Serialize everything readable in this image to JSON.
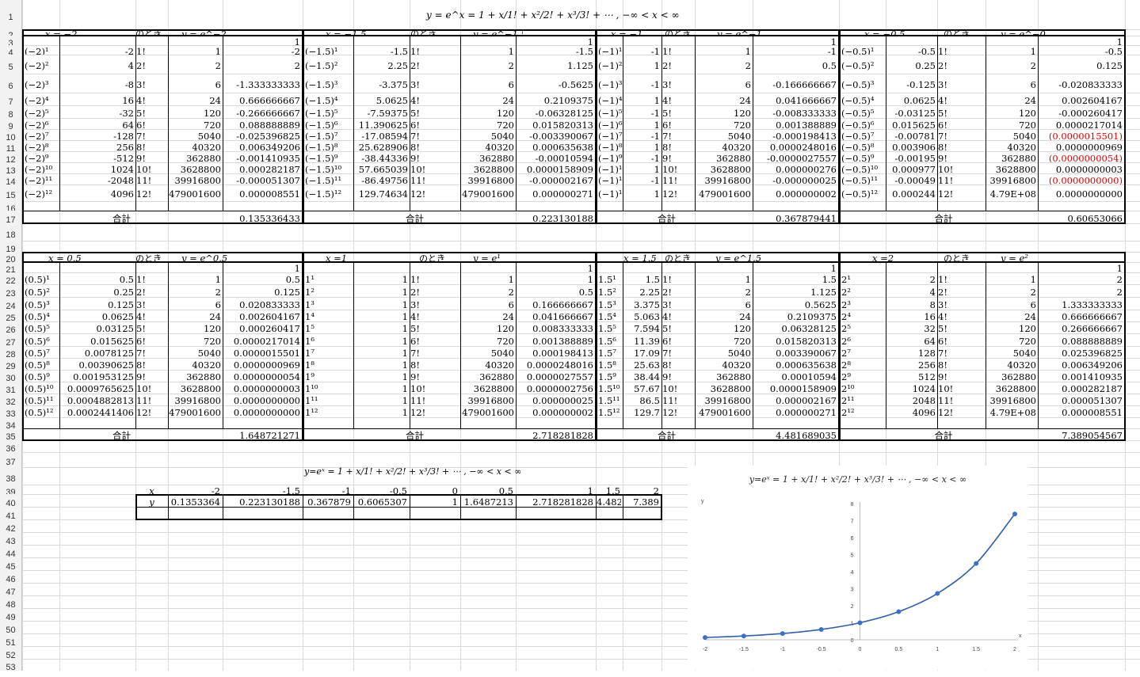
{
  "main_formula": "y = e^x = 1 + x/1! + x²/2! + x³/3! + ⋯ ,      −∞ < x < ∞",
  "small_formula": "y=eˣ = 1 + x/1! + x²/2! + x³/3! + ⋯ , −∞ < x < ∞",
  "noto_ki": "のとき",
  "total_label": "合計",
  "row_numbers": [
    "1",
    "2",
    "3",
    "4",
    "5",
    "6",
    "7",
    "8",
    "9",
    "10",
    "11",
    "12",
    "13",
    "14",
    "15",
    "16",
    "17",
    "18",
    "19",
    "20",
    "21",
    "22",
    "23",
    "24",
    "25",
    "26",
    "27",
    "28",
    "29",
    "30",
    "31",
    "32",
    "33",
    "34",
    "35",
    "36",
    "37",
    "38",
    "39",
    "40",
    "41",
    "42",
    "43",
    "44",
    "45",
    "46",
    "47",
    "48",
    "49",
    "50",
    "51",
    "52",
    "53"
  ],
  "blocks": [
    {
      "x_label": "x = −2",
      "y_label": "y = e^−2",
      "one": "1",
      "pow": [
        "(−2)¹",
        "(−2)²",
        "(−2)³",
        "(−2)⁴",
        "(−2)⁵",
        "(−2)⁶",
        "(−2)⁷",
        "(−2)⁸",
        "(−2)⁹",
        "(−2)¹⁰",
        "(−2)¹¹",
        "(−2)¹²"
      ],
      "val": [
        "-2",
        "4",
        "-8",
        "16",
        "-32",
        "64",
        "-128",
        "256",
        "-512",
        "1024",
        "-2048",
        "4096"
      ],
      "fact": [
        "1!",
        "2!",
        "3!",
        "4!",
        "5!",
        "6!",
        "7!",
        "8!",
        "9!",
        "10!",
        "11!",
        "12!"
      ],
      "fv": [
        "1",
        "2",
        "6",
        "24",
        "120",
        "720",
        "5040",
        "40320",
        "362880",
        "3628800",
        "39916800",
        "479001600"
      ],
      "term": [
        "-2",
        "2",
        "-1.333333333",
        "0.666666667",
        "-0.266666667",
        "0.088888889",
        "-0.025396825",
        "0.006349206",
        "-0.001410935",
        "0.000282187",
        "-0.000051307",
        "0.000008551"
      ],
      "red": [],
      "total": "0.135336433"
    },
    {
      "x_label": "x = −1.5",
      "y_label": "y = e^−1.5",
      "one": "1",
      "pow": [
        "(−1.5)¹",
        "(−1.5)²",
        "(−1.5)³",
        "(−1.5)⁴",
        "(−1.5)⁵",
        "(−1.5)⁶",
        "(−1.5)⁷",
        "(−1.5)⁸",
        "(−1.5)⁹",
        "(−1.5)¹⁰",
        "(−1.5)¹¹",
        "(−1.5)¹²"
      ],
      "val": [
        "-1.5",
        "2.25",
        "-3.375",
        "5.0625",
        "-7.59375",
        "11.390625",
        "-17.08594",
        "25.628906",
        "-38.44336",
        "57.665039",
        "-86.49756",
        "129.74634"
      ],
      "fact": [
        "1!",
        "2!",
        "3!",
        "4!",
        "5!",
        "6!",
        "7!",
        "8!",
        "9!",
        "10!",
        "11!",
        "12!"
      ],
      "fv": [
        "1",
        "2",
        "6",
        "24",
        "120",
        "720",
        "5040",
        "40320",
        "362880",
        "3628800",
        "39916800",
        "479001600"
      ],
      "term": [
        "-1.5",
        "1.125",
        "-0.5625",
        "0.2109375",
        "-0.06328125",
        "0.015820313",
        "-0.003390067",
        "0.000635638",
        "-0.00010594",
        "0.0000158909",
        "-0.000002167",
        "0.000000271"
      ],
      "red": [],
      "total": "0.223130188"
    },
    {
      "x_label": "x = −1",
      "y_label": "y = e^−1",
      "one": "1",
      "pow": [
        "(−1)¹",
        "(−1)²",
        "(−1)³",
        "(−1)⁴",
        "(−1)⁵",
        "(−1)⁶",
        "(−1)⁷",
        "(−1)⁸",
        "(−1)⁹",
        "(−1)¹⁰",
        "(−1)¹¹",
        "(−1)¹²"
      ],
      "val": [
        "-1",
        "1",
        "-1",
        "1",
        "-1",
        "1",
        "-1",
        "1",
        "-1",
        "1",
        "-1",
        "1"
      ],
      "fact": [
        "1!",
        "2!",
        "3!",
        "4!",
        "5!",
        "6!",
        "7!",
        "8!",
        "9!",
        "10!",
        "11!",
        "12!"
      ],
      "fv": [
        "1",
        "2",
        "6",
        "24",
        "120",
        "720",
        "5040",
        "40320",
        "362880",
        "3628800",
        "39916800",
        "479001600"
      ],
      "term": [
        "-1",
        "0.5",
        "-0.166666667",
        "0.041666667",
        "-0.008333333",
        "0.001388889",
        "-0.000198413",
        "0.0000248016",
        "-0.0000027557",
        "0.000000276",
        "-0.000000025",
        "0.000000002"
      ],
      "red": [],
      "total": "0.367879441"
    },
    {
      "x_label": "x = −0.5",
      "y_label": "y = e^−0.5",
      "one": "1",
      "pow": [
        "(−0.5)¹",
        "(−0.5)²",
        "(−0.5)³",
        "(−0.5)⁴",
        "(−0.5)⁵",
        "(−0.5)⁶",
        "(−0.5)⁷",
        "(−0.5)⁸",
        "(−0.5)⁹",
        "(−0.5)¹⁰",
        "(−0.5)¹¹",
        "(−0.5)¹²"
      ],
      "val": [
        "-0.5",
        "0.25",
        "-0.125",
        "0.0625",
        "-0.03125",
        "0.015625",
        "-0.00781",
        "0.003906",
        "-0.00195",
        "0.000977",
        "-0.00049",
        "0.000244"
      ],
      "fact": [
        "1!",
        "2!",
        "3!",
        "4!",
        "5!",
        "6!",
        "7!",
        "8!",
        "9!",
        "10!",
        "11!",
        "12!"
      ],
      "fv": [
        "1",
        "2",
        "6",
        "24",
        "120",
        "720",
        "5040",
        "40320",
        "362880",
        "3628800",
        "39916800",
        "4.79E+08"
      ],
      "term": [
        "-0.5",
        "0.125",
        "-0.020833333",
        "0.002604167",
        "-0.000260417",
        "0.0000217014",
        "(0.0000015501)",
        "0.0000000969",
        "(0.0000000054)",
        "0.0000000003",
        "(0.0000000000)",
        "0.0000000000"
      ],
      "red": [
        6,
        8,
        10
      ],
      "total": "0.60653066"
    },
    {
      "x_label": "x = 0.5",
      "y_label": "y = e^0.5",
      "one": "1",
      "pow": [
        "(0.5)¹",
        "(0.5)²",
        "(0.5)³",
        "(0.5)⁴",
        "(0.5)⁵",
        "(0.5)⁶",
        "(0.5)⁷",
        "(0.5)⁸",
        "(0.5)⁹",
        "(0.5)¹⁰",
        "(0.5)¹¹",
        "(0.5)¹²"
      ],
      "val": [
        "0.5",
        "0.25",
        "0.125",
        "0.0625",
        "0.03125",
        "0.015625",
        "0.0078125",
        "0.00390625",
        "0.001953125",
        "0.0009765625",
        "0.0004882813",
        "0.0002441406"
      ],
      "fact": [
        "1!",
        "2!",
        "3!",
        "4!",
        "5!",
        "6!",
        "7!",
        "8!",
        "9!",
        "10!",
        "11!",
        "12!"
      ],
      "fv": [
        "1",
        "2",
        "6",
        "24",
        "120",
        "720",
        "5040",
        "40320",
        "362880",
        "3628800",
        "39916800",
        "479001600"
      ],
      "term": [
        "0.5",
        "0.125",
        "0.020833333",
        "0.002604167",
        "0.000260417",
        "0.0000217014",
        "0.0000015501",
        "0.0000000969",
        "0.0000000054",
        "0.0000000003",
        "0.0000000000",
        "0.0000000000"
      ],
      "red": [],
      "total": "1.648721271"
    },
    {
      "x_label": "x =1",
      "y_label": "y = e¹",
      "one": "1",
      "pow": [
        "1¹",
        "1²",
        "1³",
        "1⁴",
        "1⁵",
        "1⁶",
        "1⁷",
        "1⁸",
        "1⁹",
        "1¹⁰",
        "1¹¹",
        "1¹²"
      ],
      "val": [
        "1",
        "1",
        "1",
        "1",
        "1",
        "1",
        "1",
        "1",
        "1",
        "1",
        "1",
        "1"
      ],
      "fact": [
        "1!",
        "2!",
        "3!",
        "4!",
        "5!",
        "6!",
        "7!",
        "8!",
        "9!",
        "10!",
        "11!",
        "12!"
      ],
      "fv": [
        "1",
        "2",
        "6",
        "24",
        "120",
        "720",
        "5040",
        "40320",
        "362880",
        "3628800",
        "39916800",
        "479001600"
      ],
      "term": [
        "1",
        "0.5",
        "0.166666667",
        "0.041666667",
        "0.008333333",
        "0.001388889",
        "0.000198413",
        "0.0000248016",
        "0.0000027557",
        "0.0000002756",
        "0.000000025",
        "0.000000002"
      ],
      "red": [],
      "total": "2.718281828"
    },
    {
      "x_label": "x = 1.5",
      "y_label": "y = e^1.5",
      "one": "1",
      "pow": [
        "1.5¹",
        "1.5²",
        "1.5³",
        "1.5⁴",
        "1.5⁵",
        "1.5⁶",
        "1.5⁷",
        "1.5⁸",
        "1.5⁹",
        "1.5¹⁰",
        "1.5¹¹",
        "1.5¹²"
      ],
      "val": [
        "1.5",
        "2.25",
        "3.375",
        "5.063",
        "7.594",
        "11.39",
        "17.09",
        "25.63",
        "38.44",
        "57.67",
        "86.5",
        "129.7"
      ],
      "fact": [
        "1!",
        "2!",
        "3!",
        "4!",
        "5!",
        "6!",
        "7!",
        "8!",
        "9!",
        "10!",
        "11!",
        "12!"
      ],
      "fv": [
        "1",
        "2",
        "6",
        "24",
        "120",
        "720",
        "5040",
        "40320",
        "362880",
        "3628800",
        "39916800",
        "479001600"
      ],
      "term": [
        "1.5",
        "1.125",
        "0.5625",
        "0.2109375",
        "0.06328125",
        "0.015820313",
        "0.003390067",
        "0.000635638",
        "0.00010594",
        "0.0000158909",
        "0.000002167",
        "0.000000271"
      ],
      "red": [],
      "total": "4.481689035"
    },
    {
      "x_label": "x =2",
      "y_label": "y = e²",
      "one": "1",
      "pow": [
        "2¹",
        "2²",
        "2³",
        "2⁴",
        "2⁵",
        "2⁶",
        "2⁷",
        "2⁸",
        "2⁹",
        "2¹⁰",
        "2¹¹",
        "2¹²"
      ],
      "val": [
        "2",
        "4",
        "8",
        "16",
        "32",
        "64",
        "128",
        "256",
        "512",
        "1024",
        "2048",
        "4096"
      ],
      "fact": [
        "1!",
        "2!",
        "3!",
        "4!",
        "5!",
        "6!",
        "7!",
        "8!",
        "9!",
        "10!",
        "11!",
        "12!"
      ],
      "fv": [
        "1",
        "2",
        "6",
        "24",
        "120",
        "720",
        "5040",
        "40320",
        "362880",
        "3628800",
        "39916800",
        "4.79E+08"
      ],
      "term": [
        "2",
        "2",
        "1.333333333",
        "0.666666667",
        "0.266666667",
        "0.088888889",
        "0.025396825",
        "0.006349206",
        "0.001410935",
        "0.000282187",
        "0.000051307",
        "0.000008551"
      ],
      "red": [],
      "total": "7.389054567"
    }
  ],
  "summary": {
    "x_head": "x",
    "y_head": "y",
    "x": [
      "-2",
      "-1.5",
      "-1",
      "-0.5",
      "0",
      "0.5",
      "1",
      "1.5",
      "2"
    ],
    "y": [
      "0.1353364",
      "0.223130188",
      "0.367879",
      "0.6065307",
      "1",
      "1.6487213",
      "2.718281828",
      "4.482",
      "7.389"
    ]
  },
  "chart_data": {
    "type": "line",
    "title": "y=eˣ = 1 + x/1! + x²/2! + x³/3! + ⋯ , −∞ < x < ∞",
    "xlabel": "x",
    "ylabel": "y",
    "x": [
      -2,
      -1.5,
      -1,
      -0.5,
      0,
      0.5,
      1,
      1.5,
      2
    ],
    "y": [
      0.1353364,
      0.223130188,
      0.367879,
      0.6065307,
      1,
      1.6487213,
      2.718281828,
      4.482,
      7.389
    ],
    "xticks": [
      "-2",
      "-1.5",
      "-1",
      "-0.5",
      "0",
      "0.5",
      "1",
      "1.5",
      "2"
    ],
    "yticks": [
      "0",
      "1",
      "2",
      "3",
      "4",
      "5",
      "6",
      "7",
      "8"
    ],
    "xlim": [
      -2,
      2
    ],
    "ylim": [
      0,
      8
    ],
    "grid": false,
    "line_color": "#2e5fa8",
    "marker_color": "#3a70c7"
  }
}
